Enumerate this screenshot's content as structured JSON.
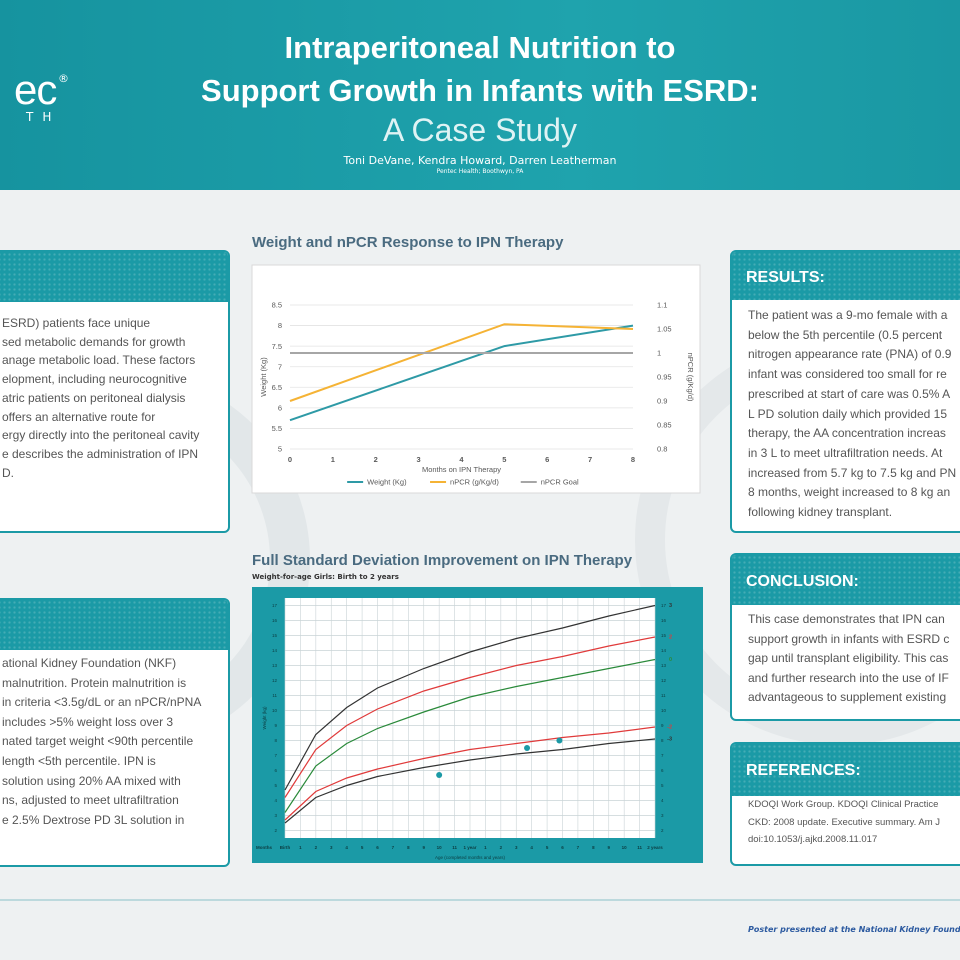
{
  "header": {
    "logo": "ec",
    "logo_mark": "®",
    "logo_sub": "TH",
    "title_lines": [
      "Intraperitoneal Nutrition to",
      "Support Growth in Infants with ESRD:"
    ],
    "subtitle": "A Case Study",
    "authors": "Toni DeVane, Kendra Howard, Darren Leatherman",
    "affiliation": "Pentec Health; Boothwyn, PA"
  },
  "intro": {
    "body_lines": [
      "ESRD) patients face unique",
      "sed metabolic demands for growth",
      "anage metabolic load. These factors",
      "elopment, including neurocognitive",
      "atric patients on peritoneal dialysis",
      "offers an alternative route for",
      "ergy directly into the peritoneal cavity",
      "e describes the administration of IPN",
      "D."
    ]
  },
  "methods": {
    "body_lines": [
      "ational Kidney Foundation (NKF)",
      "malnutrition. Protein malnutrition is",
      "in criteria <3.5g/dL or an nPCR/nPNA",
      "includes >5% weight loss over 3",
      "nated target weight <90th percentile",
      "length <5th percentile. IPN is",
      "solution using 20% AA mixed with",
      "ns, adjusted to meet ultrafiltration",
      "e 2.5% Dextrose PD 3L solution in"
    ]
  },
  "results": {
    "heading": "RESULTS:",
    "body_lines": [
      "The patient was a 9-mo female with a",
      "below the 5th percentile (0.5 percent",
      "nitrogen appearance rate (PNA) of 0.9",
      "infant was considered too small for re",
      "prescribed at start of care was 0.5% A",
      "L PD solution daily which provided 15",
      "therapy, the AA concentration increas",
      "in 3 L to meet ultrafiltration needs. At",
      "increased from 5.7 kg to 7.5 kg and PN",
      "8 months, weight increased to 8 kg an",
      "following kidney transplant."
    ]
  },
  "conclusion": {
    "heading": "CONCLUSION:",
    "body_lines": [
      "This case demonstrates that IPN can",
      "support growth in infants with ESRD c",
      "gap until transplant eligibility. This cas",
      "and further research into the use of IF",
      "advantageous to supplement existing"
    ]
  },
  "references": {
    "heading": "REFERENCES:",
    "body_lines": [
      "KDOQI Work Group. KDOQI Clinical Practice",
      "CKD: 2008 update. Executive summary. Am J",
      "doi:10.1053/j.ajkd.2008.11.017"
    ]
  },
  "footer": "Poster presented at the National Kidney Foundation",
  "chart_data": [
    {
      "type": "line",
      "title": "Weight and nPCR Response to IPN Therapy",
      "xlabel": "Months on IPN Therapy",
      "ylabel": "Weight (Kg)",
      "y2label": "nPCR (g/Kg/d)",
      "x": [
        0,
        5,
        8
      ],
      "series": [
        {
          "name": "Weight (Kg)",
          "color": "#2e9aa6",
          "values": [
            5.7,
            7.5,
            8.0
          ]
        },
        {
          "name": "nPCR (g/Kg/d)",
          "color": "#f5b335",
          "values": [
            0.9,
            1.06,
            1.05
          ],
          "axis": "y2"
        },
        {
          "name": "nPCR Goal",
          "color": "#a6a6a6",
          "values": [
            1,
            1,
            1
          ],
          "axis": "y2"
        }
      ],
      "xlim": [
        0,
        8
      ],
      "xticks": [
        0,
        1,
        2,
        3,
        4,
        5,
        6,
        7,
        8
      ],
      "ylim": [
        5,
        8.5
      ],
      "yticks": [
        5,
        5.5,
        6,
        6.5,
        7,
        7.5,
        8,
        8.5
      ],
      "y2lim": [
        0.8,
        1.1
      ],
      "y2ticks": [
        0.8,
        0.85,
        0.9,
        0.95,
        1,
        1.05,
        1.1
      ],
      "grid": true,
      "legend": "bottom"
    },
    {
      "type": "line",
      "title": "Full Standard Deviation Improvement on IPN Therapy",
      "subtitle": "Weight-for-age Girls: Birth to 2 years",
      "xlabel": "Age (completed months and years)",
      "ylabel": "Weight (kg)",
      "xtick_caption": "Months",
      "x": [
        0,
        2,
        4,
        6,
        9,
        12,
        15,
        18,
        21,
        24
      ],
      "series": [
        {
          "name": "3",
          "color": "#333333",
          "values": [
            4.7,
            8.4,
            10.2,
            11.5,
            12.8,
            13.9,
            14.8,
            15.5,
            16.3,
            17.0
          ]
        },
        {
          "name": "2",
          "color": "#e03a3a",
          "values": [
            4.2,
            7.4,
            9.0,
            10.1,
            11.3,
            12.2,
            13.0,
            13.6,
            14.3,
            14.9
          ]
        },
        {
          "name": "0",
          "color": "#2a8a3a",
          "values": [
            3.2,
            6.3,
            7.8,
            8.8,
            9.9,
            10.9,
            11.6,
            12.2,
            12.8,
            13.4
          ]
        },
        {
          "name": "-2",
          "color": "#e03a3a",
          "values": [
            2.7,
            4.6,
            5.5,
            6.1,
            6.8,
            7.4,
            7.8,
            8.2,
            8.5,
            8.9
          ]
        },
        {
          "name": "-3",
          "color": "#333333",
          "values": [
            2.5,
            4.2,
            5.0,
            5.6,
            6.2,
            6.7,
            7.1,
            7.4,
            7.8,
            8.1
          ]
        }
      ],
      "points": {
        "x": [
          10,
          15.7,
          17.8
        ],
        "values": [
          5.7,
          7.5,
          8.0
        ],
        "color": "#1b9aa6"
      },
      "xlim": [
        0,
        24
      ],
      "xticks": [
        {
          "value": 0,
          "label": "Birth"
        },
        1,
        2,
        3,
        4,
        5,
        6,
        7,
        8,
        9,
        10,
        11,
        {
          "value": 12,
          "label": "1 year"
        },
        {
          "value": 13,
          "label": "1"
        },
        {
          "value": 14,
          "label": "2"
        },
        {
          "value": 15,
          "label": "3"
        },
        {
          "value": 16,
          "label": "4"
        },
        {
          "value": 17,
          "label": "5"
        },
        {
          "value": 18,
          "label": "6"
        },
        {
          "value": 19,
          "label": "7"
        },
        {
          "value": 20,
          "label": "8"
        },
        {
          "value": 21,
          "label": "9"
        },
        {
          "value": 22,
          "label": "10"
        },
        {
          "value": 23,
          "label": "11"
        },
        {
          "value": 24,
          "label": "2 years"
        }
      ],
      "ylim": [
        1.5,
        17.5
      ],
      "yticks": [
        2,
        3,
        4,
        5,
        6,
        7,
        8,
        9,
        10,
        11,
        12,
        13,
        14,
        15,
        16,
        17
      ],
      "grid": true
    }
  ]
}
